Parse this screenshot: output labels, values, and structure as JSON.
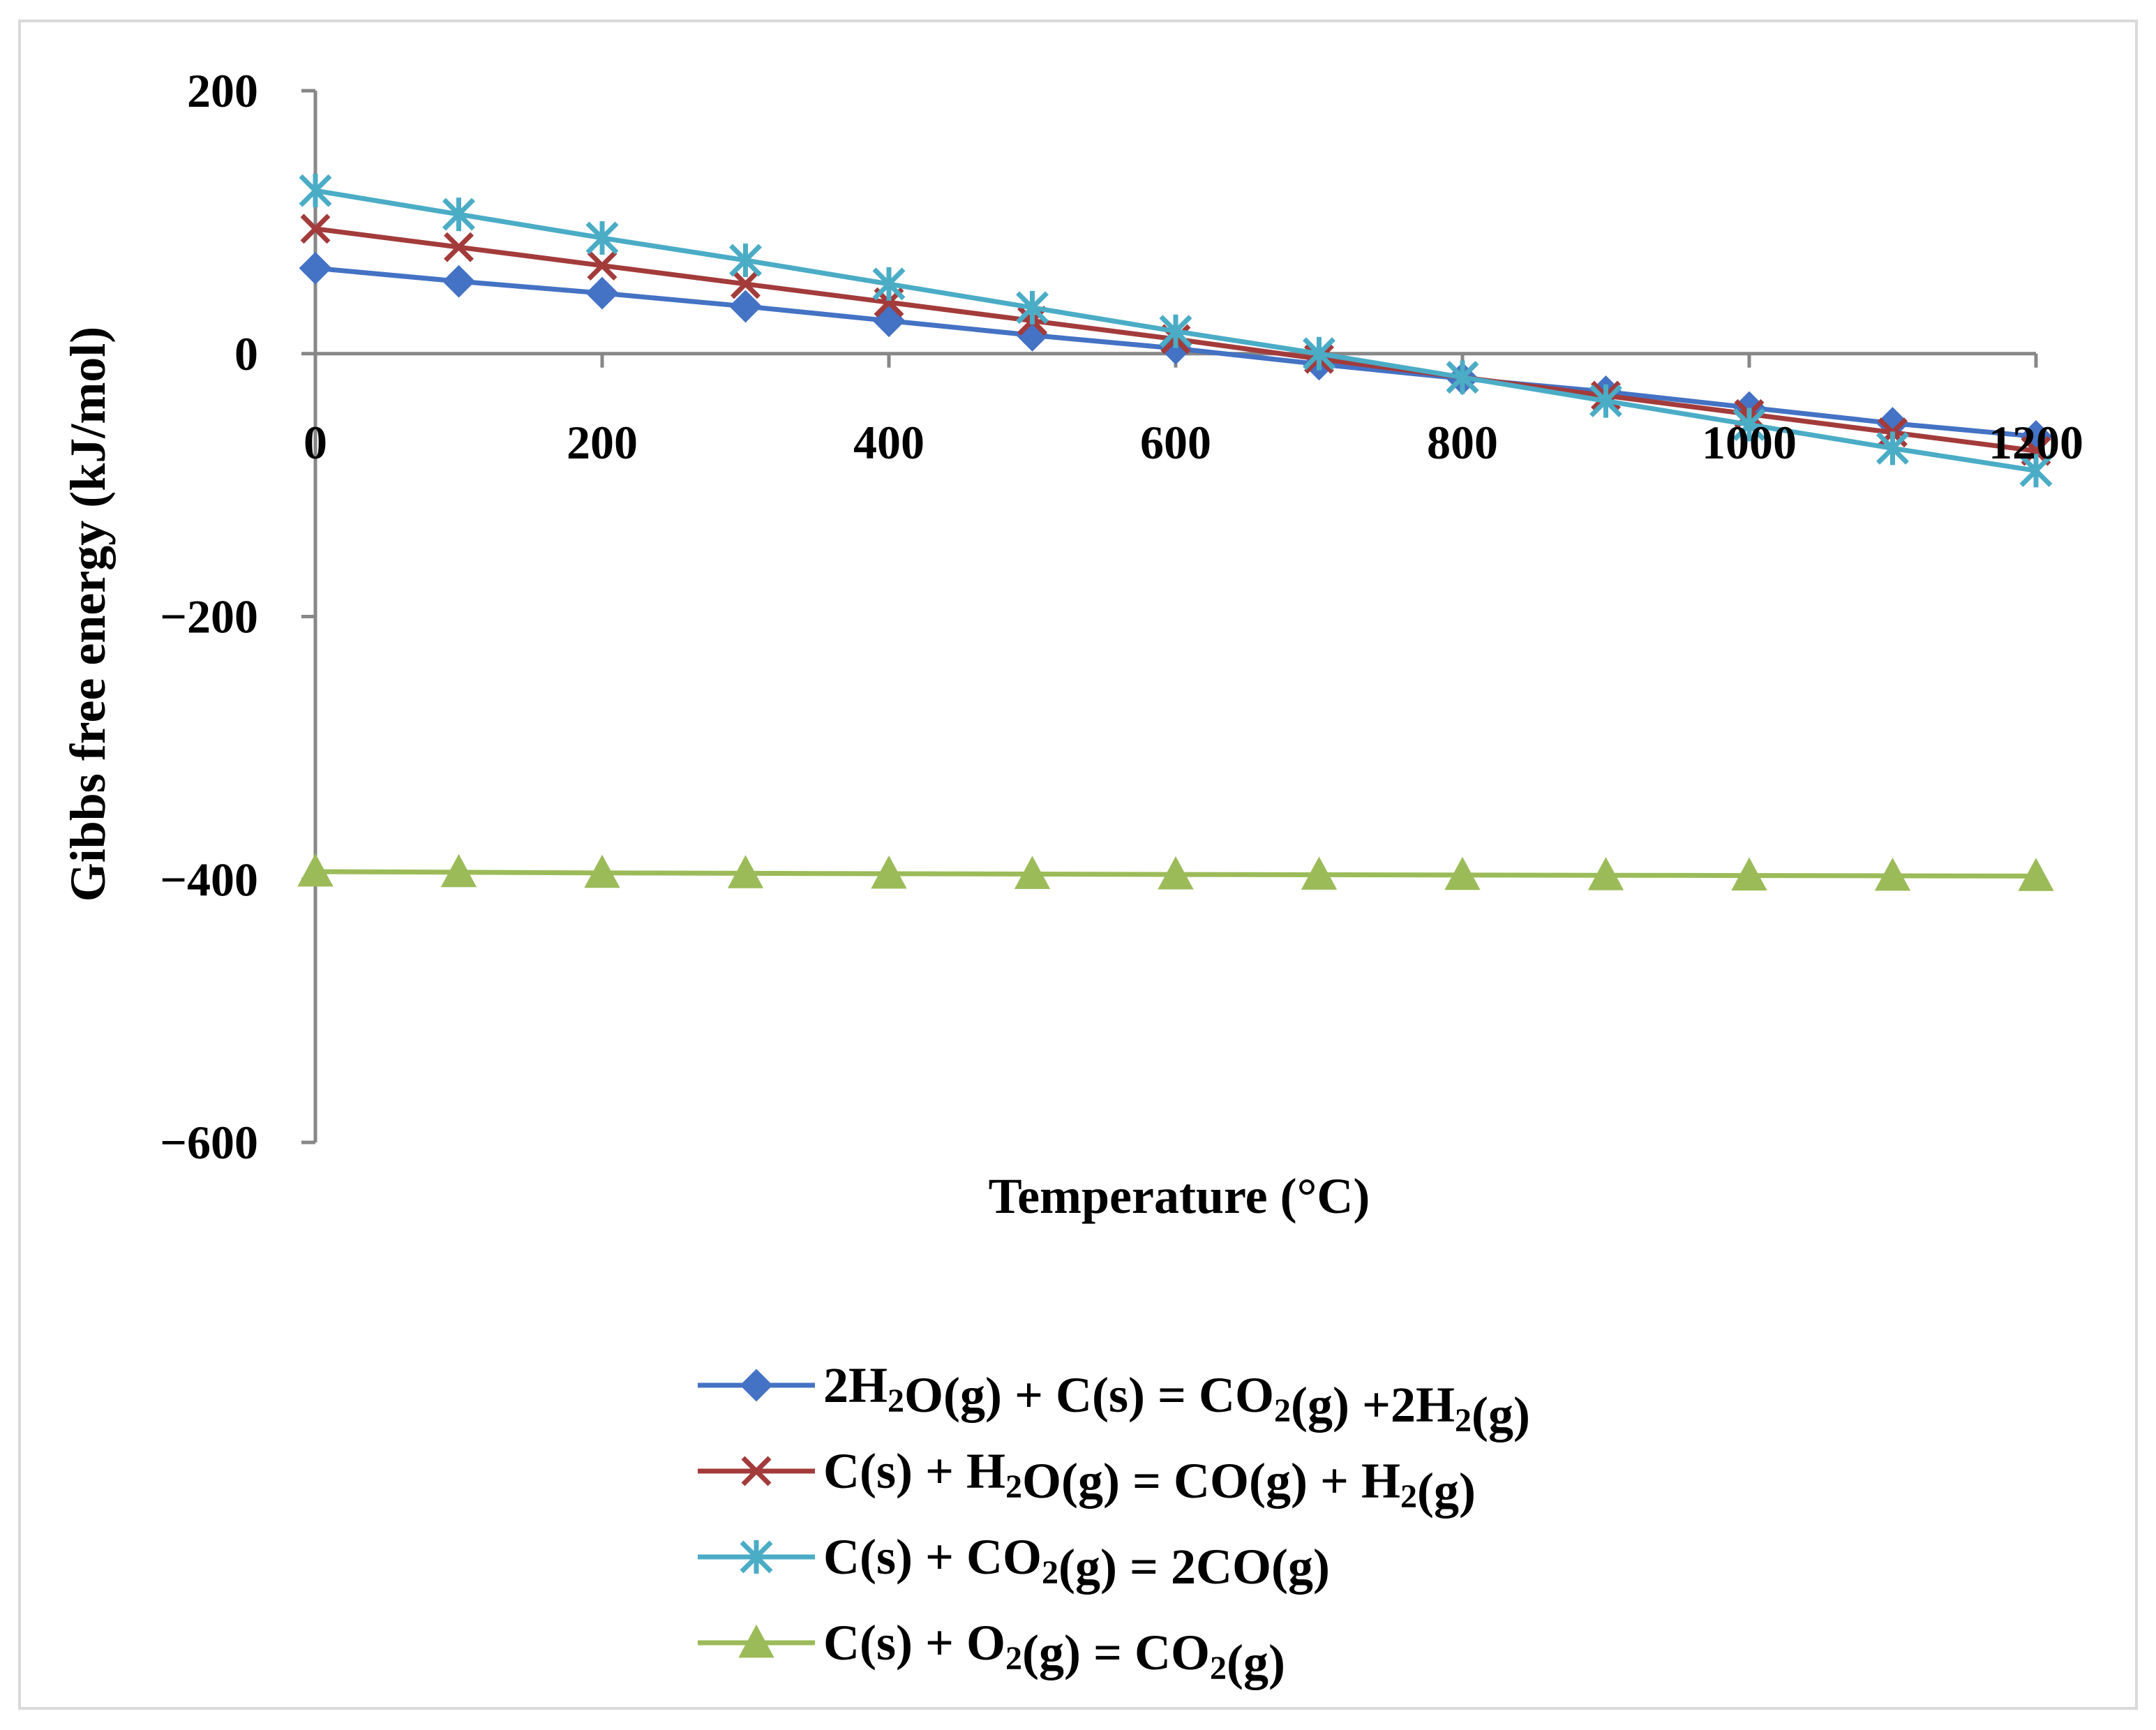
{
  "chart_data": {
    "type": "line",
    "title": "",
    "xlabel": "Temperature (°C)",
    "ylabel": "Gibbs free energy (kJ/mol)",
    "xlim": [
      0,
      1200
    ],
    "ylim": [
      -600,
      200
    ],
    "xticks": [
      0,
      200,
      400,
      600,
      800,
      1000,
      1200
    ],
    "yticks": [
      200,
      0,
      -200,
      -400,
      -600
    ],
    "ytick_labels": [
      "200",
      "0",
      "−200",
      "−400",
      "−600"
    ],
    "grid": false,
    "legend_position": "bottom",
    "x": [
      0,
      100,
      200,
      300,
      400,
      500,
      600,
      700,
      800,
      900,
      1000,
      1100,
      1200
    ],
    "series": [
      {
        "name": "2H2O(g) + C(s) = CO2(g) +2H2(g)",
        "label_parts": [
          [
            "2H",
            ""
          ],
          [
            "2",
            "sub"
          ],
          [
            "O(g) + C(s) = CO",
            ""
          ],
          [
            "2",
            "sub"
          ],
          [
            "(g) +2H",
            ""
          ],
          [
            "2",
            "sub"
          ],
          [
            "(g)",
            ""
          ]
        ],
        "color": "#4472c4",
        "marker": "diamond",
        "values": [
          65,
          55,
          46,
          36,
          25,
          14,
          4,
          -8,
          -19,
          -29,
          -41,
          -53,
          -63
        ]
      },
      {
        "name": "C(s) + H2O(g) = CO(g) + H2(g)",
        "label_parts": [
          [
            "C(s) + H",
            ""
          ],
          [
            "2",
            "sub"
          ],
          [
            "O(g) = CO(g) + H",
            ""
          ],
          [
            "2",
            "sub"
          ],
          [
            "(g)",
            ""
          ]
        ],
        "color": "#a33b3b",
        "marker": "x",
        "values": [
          95,
          81,
          67,
          53,
          39,
          25,
          11,
          -4,
          -18,
          -32,
          -46,
          -60,
          -74
        ]
      },
      {
        "name": "C(s) + CO2(g) = 2CO(g)",
        "label_parts": [
          [
            "C(s) + CO",
            ""
          ],
          [
            "2",
            "sub"
          ],
          [
            "(g) = 2CO(g)",
            ""
          ]
        ],
        "color": "#4bacc6",
        "marker": "asterisk",
        "values": [
          124,
          106,
          88,
          71,
          53,
          35,
          17,
          0,
          -18,
          -36,
          -54,
          -72,
          -89
        ]
      },
      {
        "name": "C(s) + O2(g) = CO2(g)",
        "label_parts": [
          [
            "C(s) + O",
            ""
          ],
          [
            "2",
            "sub"
          ],
          [
            "(g) = CO",
            ""
          ],
          [
            "2",
            "sub"
          ],
          [
            "(g)",
            ""
          ]
        ],
        "color": "#9bbb59",
        "marker": "triangle",
        "values": [
          -394,
          -394.5,
          -395,
          -395.3,
          -395.6,
          -395.9,
          -396.2,
          -396.4,
          -396.6,
          -396.8,
          -397,
          -397.2,
          -397.4
        ]
      }
    ]
  }
}
